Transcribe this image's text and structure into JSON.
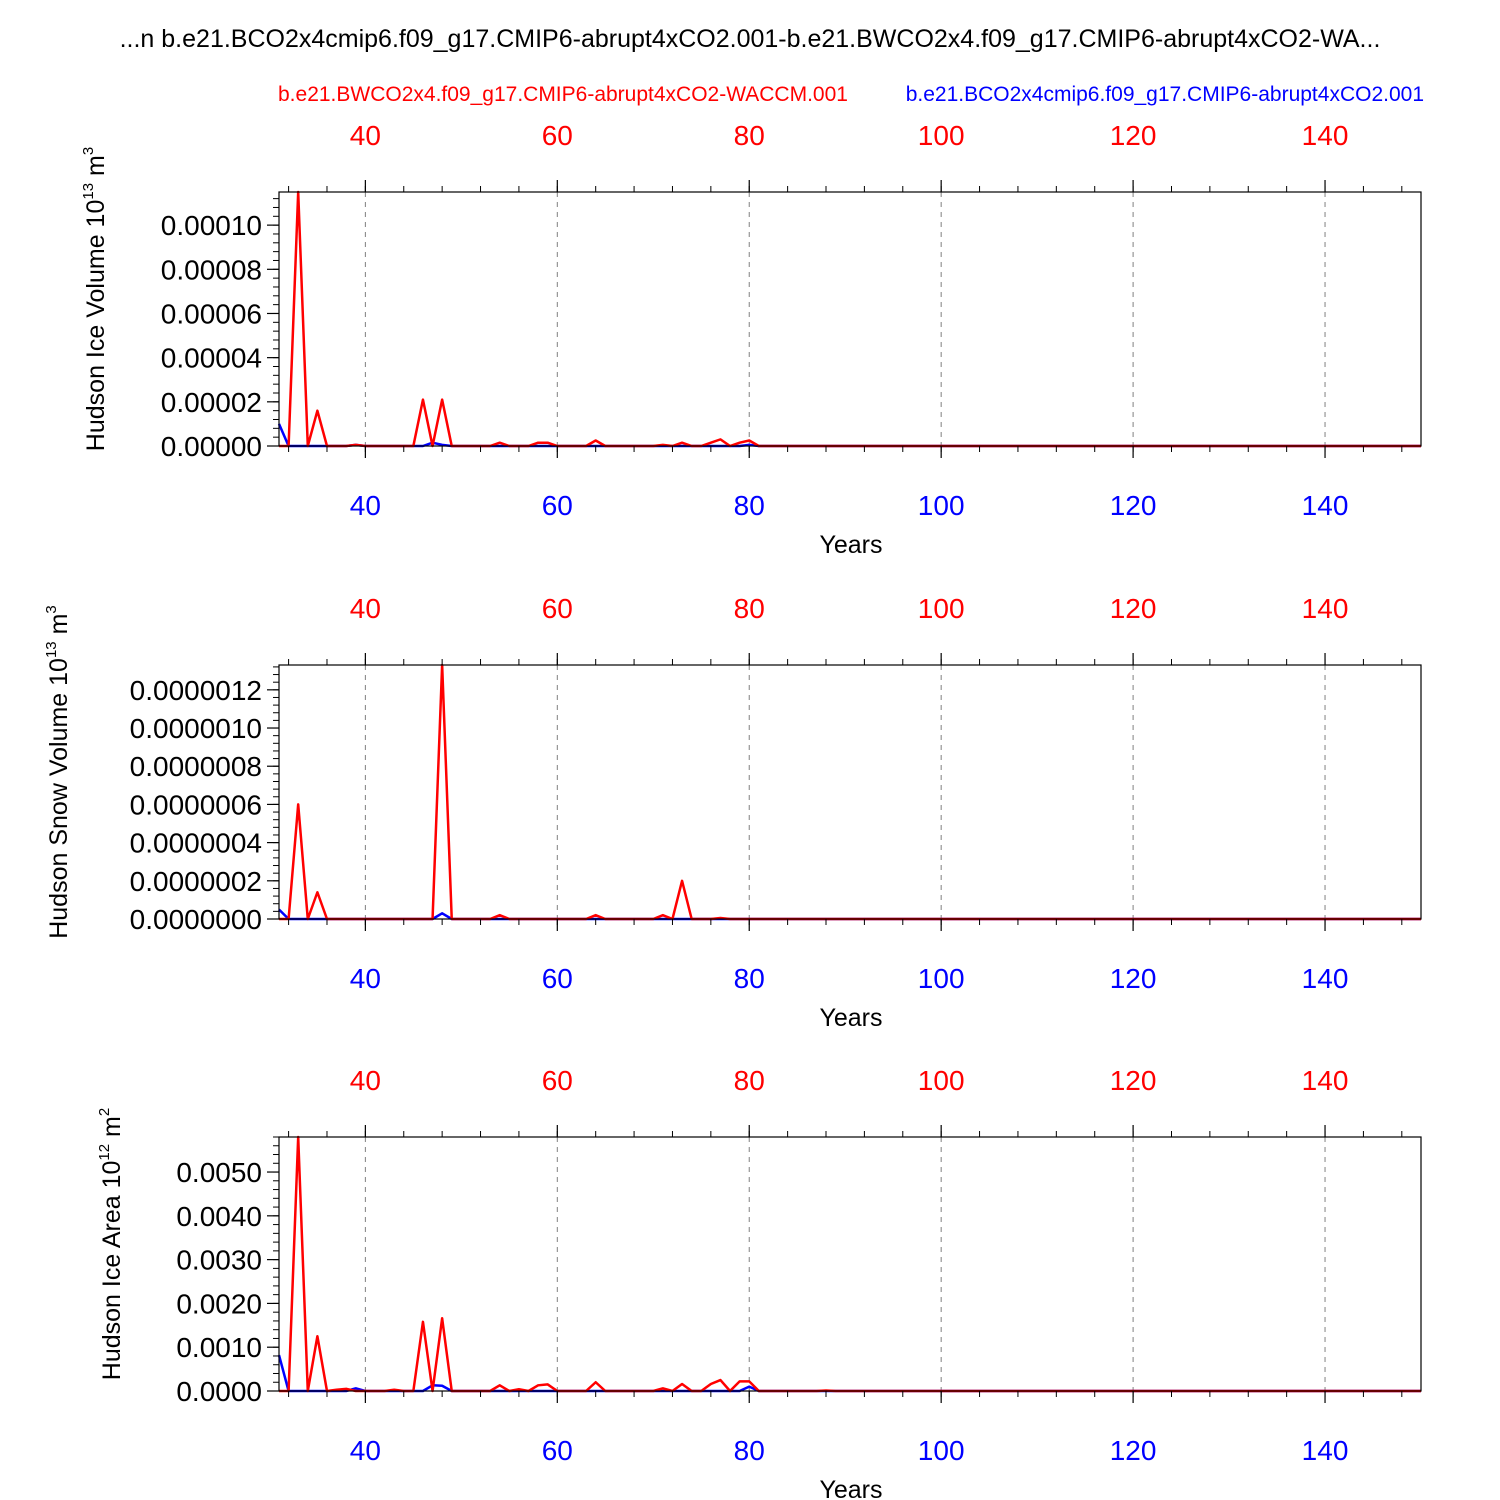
{
  "figure": {
    "title": "...n b.e21.BCO2x4cmip6.f09_g17.CMIP6-abrupt4xCO2.001-b.e21.BWCO2x4.f09_g17.CMIP6-abrupt4xCO2-WA...",
    "legend_red": "b.e21.BWCO2x4.f09_g17.CMIP6-abrupt4xCO2-WACCM.001",
    "legend_blue": "b.e21.BCO2x4cmip6.f09_g17.CMIP6-abrupt4xCO2.001",
    "colors": {
      "red": "#ff0000",
      "blue": "#0000ff",
      "axis": "#000000",
      "grid": "#808080"
    }
  },
  "chart_data": [
    {
      "type": "line",
      "ylabel": "Hudson Ice Volume 10^13 m^3",
      "ylabel_base": "Hudson Ice Volume 10",
      "ylabel_exp": "13",
      "ylabel_unit": " m",
      "ylabel_unit_exp": "3",
      "xlabel": "Years",
      "xlim": [
        31,
        150
      ],
      "ylim": [
        0,
        0.000115
      ],
      "x_ticks": [
        40,
        60,
        80,
        100,
        120,
        140
      ],
      "top_ticks": [
        40,
        60,
        80,
        100,
        120,
        140
      ],
      "y_ticks": [
        0,
        2e-05,
        4e-05,
        6e-05,
        8e-05,
        0.0001
      ],
      "y_tick_labels": [
        "0.00000",
        "0.00002",
        "0.00004",
        "0.00006",
        "0.00008",
        "0.00010"
      ],
      "grid": "vertical dashed",
      "series": [
        {
          "color": "blue",
          "x_start": 31,
          "values": [
            1e-05,
            0,
            0,
            0,
            0,
            0,
            0,
            0,
            5e-07,
            0,
            0,
            0,
            0,
            0,
            0,
            0,
            1.5e-06,
            5e-07,
            0,
            0,
            0,
            0,
            0,
            0,
            0,
            0,
            0,
            0,
            0,
            0,
            0,
            0,
            0,
            0,
            0,
            0,
            0,
            0,
            0,
            0,
            0,
            0,
            0,
            0,
            0,
            0,
            0,
            0,
            0,
            5e-07,
            0
          ]
        },
        {
          "color": "red",
          "x_start": 31,
          "values": [
            0,
            0,
            0.000115,
            0,
            1.6e-05,
            0,
            0,
            0,
            5e-07,
            0,
            0,
            0,
            0,
            0,
            0,
            2.1e-05,
            0,
            2.1e-05,
            0,
            0,
            0,
            0,
            0,
            1.5e-06,
            0,
            0,
            0,
            1.5e-06,
            1.5e-06,
            0,
            0,
            0,
            0,
            2.5e-06,
            0,
            0,
            0,
            0,
            0,
            0,
            5e-07,
            0,
            1.5e-06,
            0,
            0,
            1.5e-06,
            3e-06,
            0,
            1.5e-06,
            2.5e-06,
            0
          ]
        }
      ]
    },
    {
      "type": "line",
      "ylabel": "Hudson Snow Volume 10^13 m^3",
      "ylabel_base": "Hudson Snow Volume 10",
      "ylabel_exp": "13",
      "ylabel_unit": " m",
      "ylabel_unit_exp": "3",
      "xlabel": "Years",
      "xlim": [
        31,
        150
      ],
      "ylim": [
        0,
        1.33e-06
      ],
      "x_ticks": [
        40,
        60,
        80,
        100,
        120,
        140
      ],
      "top_ticks": [
        40,
        60,
        80,
        100,
        120,
        140
      ],
      "y_ticks": [
        0,
        2e-07,
        4e-07,
        6e-07,
        8e-07,
        1e-06,
        1.2e-06
      ],
      "y_tick_labels": [
        "0.0000000",
        "0.0000002",
        "0.0000004",
        "0.0000006",
        "0.0000008",
        "0.0000010",
        "0.0000012"
      ],
      "grid": "vertical dashed",
      "series": [
        {
          "color": "blue",
          "x_start": 31,
          "values": [
            5e-08,
            0,
            0,
            0,
            0,
            0,
            0,
            0,
            0,
            0,
            0,
            0,
            0,
            0,
            0,
            0,
            0,
            3e-08,
            0,
            0,
            0,
            0,
            0,
            0,
            0,
            0,
            0,
            0,
            0,
            0,
            0,
            0,
            0,
            0,
            0,
            0,
            0,
            0,
            0,
            0,
            0,
            0,
            0,
            0,
            0,
            0,
            0,
            0,
            0,
            0,
            0
          ]
        },
        {
          "color": "red",
          "x_start": 31,
          "values": [
            0,
            0,
            6e-07,
            0,
            1.4e-07,
            0,
            0,
            0,
            0,
            0,
            0,
            0,
            0,
            0,
            0,
            0,
            0,
            1.33e-06,
            0,
            0,
            0,
            0,
            0,
            2e-08,
            0,
            0,
            0,
            0,
            0,
            0,
            0,
            0,
            0,
            2e-08,
            0,
            0,
            0,
            0,
            0,
            0,
            2e-08,
            0,
            2e-07,
            0,
            0,
            0,
            5e-09,
            0,
            0,
            0,
            0
          ]
        }
      ]
    },
    {
      "type": "line",
      "ylabel": "Hudson Ice Area 10^12 m^2",
      "ylabel_base": "Hudson Ice Area 10",
      "ylabel_exp": "12",
      "ylabel_unit": " m",
      "ylabel_unit_exp": "2",
      "xlabel": "Years",
      "xlim": [
        31,
        150
      ],
      "ylim": [
        0,
        0.0058
      ],
      "x_ticks": [
        40,
        60,
        80,
        100,
        120,
        140
      ],
      "top_ticks": [
        40,
        60,
        80,
        100,
        120,
        140
      ],
      "y_ticks": [
        0,
        0.001,
        0.002,
        0.003,
        0.004,
        0.005
      ],
      "y_tick_labels": [
        "0.0000",
        "0.0010",
        "0.0020",
        "0.0030",
        "0.0040",
        "0.0050"
      ],
      "grid": "vertical dashed",
      "series": [
        {
          "color": "blue",
          "x_start": 31,
          "values": [
            0.00082,
            0,
            0,
            0,
            0,
            0,
            0,
            0,
            6e-05,
            0,
            0,
            0,
            0,
            0,
            0,
            0,
            0.00013,
            0.00012,
            0,
            0,
            0,
            0,
            0,
            0,
            0,
            0,
            0,
            0,
            0,
            0,
            0,
            0,
            0,
            0,
            0,
            0,
            0,
            0,
            0,
            0,
            0,
            0,
            0,
            0,
            0,
            0,
            0,
            0,
            0,
            0.0001,
            0
          ]
        },
        {
          "color": "red",
          "x_start": 31,
          "values": [
            0,
            0,
            0.0058,
            0,
            0.00125,
            0,
            3e-05,
            5e-05,
            0,
            0,
            0,
            0,
            3e-05,
            0,
            0,
            0.00158,
            0,
            0.00166,
            0,
            0,
            0,
            0,
            0,
            0.00013,
            0,
            4e-05,
            0,
            0.00013,
            0.00015,
            0,
            0,
            0,
            0,
            0.0002,
            0,
            0,
            0,
            0,
            0,
            0,
            6e-05,
            0,
            0.00016,
            0,
            0,
            0.00016,
            0.00025,
            0,
            0.00022,
            0.00022,
            0,
            0,
            0,
            0,
            0,
            0,
            0,
            1e-05,
            0
          ]
        }
      ]
    }
  ]
}
